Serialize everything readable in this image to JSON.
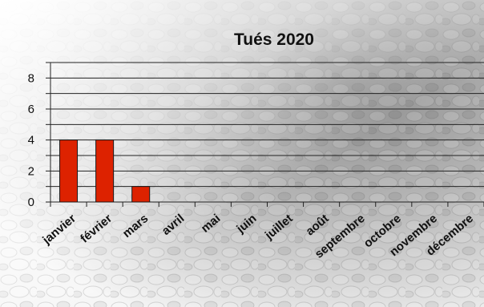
{
  "chart_data": {
    "type": "bar",
    "title": "Tués 2020",
    "xlabel": "",
    "ylabel": "",
    "categories": [
      "janvier",
      "février",
      "mars",
      "avril",
      "mai",
      "juin",
      "juillet",
      "août",
      "septembre",
      "octobre",
      "novembre",
      "décembre"
    ],
    "values": [
      4,
      4,
      1,
      0,
      0,
      0,
      0,
      0,
      0,
      0,
      0,
      0
    ],
    "ylim": [
      0,
      9
    ],
    "yticks": [
      0,
      2,
      4,
      6,
      8
    ],
    "grid": true,
    "legend": "none",
    "bar_color": "#dd2200"
  }
}
